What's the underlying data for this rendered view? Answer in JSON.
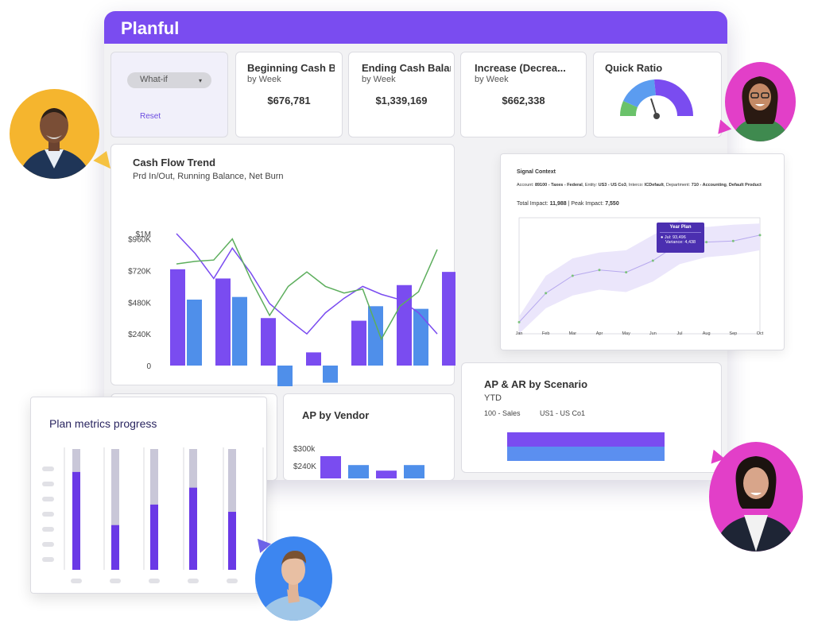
{
  "app": {
    "title": "Planful"
  },
  "whatif": {
    "label": "What-if",
    "reset_label": "Reset"
  },
  "kpis": [
    {
      "title": "Beginning Cash B",
      "sub": "by Week",
      "value": "$676,781"
    },
    {
      "title": "Ending Cash Balan",
      "sub": "by Week",
      "value": "$1,339,169"
    },
    {
      "title": "Increase (Decrea...",
      "sub": "by Week",
      "value": "$662,338"
    }
  ],
  "quick_ratio": {
    "title": "Quick Ratio",
    "colors": {
      "green": "#6ac26a",
      "blue": "#5b9cf0",
      "purple": "#7a4cf0"
    }
  },
  "cash_flow": {
    "title": "Cash Flow Trend",
    "subtitle": "Prd In/Out, Running Balance, Net Burn",
    "chart_data": {
      "type": "bar",
      "ylim": [
        -0.25,
        1.0
      ],
      "ytick_labels": [
        "$1M",
        "$960K",
        "$720K",
        "$480K",
        "$240K",
        "0"
      ],
      "ytick_values": [
        1.0,
        0.96,
        0.72,
        0.48,
        0.24,
        0.0
      ],
      "series": [
        {
          "values": [
            0.73,
            0.66,
            0.36,
            0.1,
            0.34,
            0.61,
            0.71
          ]
        },
        {
          "values": [
            0.5,
            0.52,
            -0.27,
            -0.13,
            0.45,
            0.43,
            0.23
          ]
        },
        {
          "values": [
            1.0,
            0.66,
            0.89,
            0.47,
            0.24,
            0.51,
            0.24
          ]
        },
        {
          "values": [
            0.77,
            0.76,
            0.68,
            0.55,
            0.59,
            0.56,
            0.03
          ]
        }
      ],
      "line_points_x": [
        0,
        1,
        2,
        3,
        4,
        5,
        6
      ]
    }
  },
  "signal": {
    "title": "Signal Context",
    "account_label": "Account:",
    "account": "89100 - Taxes - Federal",
    "entity_label": ", Entity:",
    "entity": "US3 - US Co3",
    "interco_label": ", Interco:",
    "interco": "ICDefault",
    "dept_label": ", Department:",
    "dept": "710 - Accounting",
    "product_label": ",",
    "product": "Default Product",
    "impact_label": "Total Impact:",
    "impact": "11,988",
    "peak_label": "| Peak Impact:",
    "peak": "7,550",
    "tooltip": {
      "title": "Year Plan",
      "line1": "Jul: 93,496",
      "line2": "Variance: 4,438"
    },
    "chart_data": {
      "type": "line",
      "x": [
        "Jan",
        "Feb",
        "Mar",
        "Apr",
        "May",
        "Jun",
        "Jul",
        "Aug",
        "Sep",
        "Oct"
      ],
      "values": [
        0.1,
        0.35,
        0.5,
        0.55,
        0.53,
        0.63,
        0.78,
        0.79,
        0.8,
        0.85
      ],
      "band_low": [
        0.0,
        0.22,
        0.33,
        0.38,
        0.36,
        0.45,
        0.6,
        0.66,
        0.68,
        0.72
      ],
      "band_high": [
        0.15,
        0.5,
        0.65,
        0.7,
        0.72,
        0.85,
        0.98,
        0.92,
        0.94,
        0.95
      ],
      "ylim": [
        0,
        1
      ]
    }
  },
  "ap_vendor": {
    "title": "AP by Vendor",
    "chart_data": {
      "type": "bar",
      "ytick_labels": [
        "$300k",
        "$240K"
      ],
      "values": [
        1.0,
        0.6,
        0.35,
        0.6
      ]
    }
  },
  "ap_ar": {
    "title": "AP & AR by Scenario",
    "subtitle": "YTD",
    "filter1": "100 - Sales",
    "filter2": "US1 - US Co1",
    "chart_data": {
      "type": "bar",
      "values": [
        1.0,
        1.0
      ]
    }
  },
  "metrics": {
    "title": "Plan metrics progress",
    "chart_data": {
      "type": "bar",
      "values": [
        0.81,
        0.37,
        0.54,
        0.68,
        0.48
      ]
    }
  },
  "colors": {
    "purple": "#7a4cf0",
    "blue": "#4f8fea",
    "green": "#5dae5d",
    "line": "#7a4cf0",
    "grey": "#c8c8d2"
  }
}
